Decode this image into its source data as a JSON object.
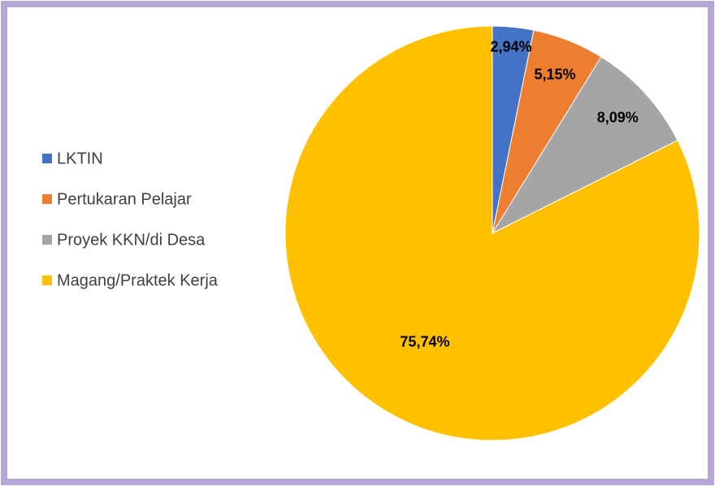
{
  "chart_data": {
    "type": "pie",
    "categories": [
      "LKTIN",
      "Pertukaran Pelajar",
      "Proyek KKN/di Desa",
      "Magang/Praktek Kerja"
    ],
    "values": [
      2.94,
      5.15,
      8.09,
      75.74
    ],
    "value_labels": [
      "2,94%",
      "5,15%",
      "8,09%",
      "75,74%"
    ],
    "colors": [
      "#4472c4",
      "#ed7d31",
      "#a5a5a5",
      "#ffc000"
    ],
    "legend": "left"
  }
}
